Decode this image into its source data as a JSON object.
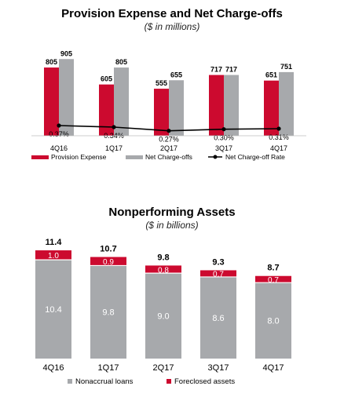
{
  "chart_data": [
    {
      "type": "bar",
      "title": "Provision Expense and Net Charge-offs",
      "subtitle": "($ in millions)",
      "categories": [
        "4Q16",
        "1Q17",
        "2Q17",
        "3Q17",
        "4Q17"
      ],
      "series": [
        {
          "name": "Provision Expense",
          "type": "bar",
          "values": [
            805,
            605,
            555,
            717,
            651
          ],
          "labels": [
            "805",
            "605",
            "555",
            "717",
            "651"
          ],
          "color": "#cc0a2f"
        },
        {
          "name": "Net Charge-offs",
          "type": "bar",
          "values": [
            905,
            805,
            655,
            717,
            751
          ],
          "labels": [
            "905",
            "805",
            "655",
            "717",
            "751"
          ],
          "color": "#a7a9ac"
        },
        {
          "name": "Net Charge-off Rate",
          "type": "line",
          "values": [
            0.37,
            0.34,
            0.27,
            0.3,
            0.31
          ],
          "labels": [
            "0.37%",
            "0.34%",
            "0.27%",
            "0.30%",
            "0.31%"
          ],
          "color": "#000000"
        }
      ],
      "ylim": [
        0,
        1000
      ],
      "legend_position": "bottom"
    },
    {
      "type": "bar",
      "stacked": true,
      "title": "Nonperforming Assets",
      "subtitle": "($ in billions)",
      "categories": [
        "4Q16",
        "1Q17",
        "2Q17",
        "3Q17",
        "4Q17"
      ],
      "totals": [
        "11.4",
        "10.7",
        "9.8",
        "9.3",
        "8.7"
      ],
      "series": [
        {
          "name": "Nonaccrual loans",
          "values": [
            10.4,
            9.8,
            9.0,
            8.6,
            8.0
          ],
          "labels": [
            "10.4",
            "9.8",
            "9.0",
            "8.6",
            "8.0"
          ],
          "color": "#a7a9ac"
        },
        {
          "name": "Foreclosed assets",
          "values": [
            1.0,
            0.9,
            0.8,
            0.7,
            0.7
          ],
          "labels": [
            "1.0",
            "0.9",
            "0.8",
            "0.7",
            "0.7"
          ],
          "color": "#cc0a2f"
        }
      ],
      "ylim": [
        0,
        12
      ],
      "legend_position": "bottom"
    }
  ]
}
